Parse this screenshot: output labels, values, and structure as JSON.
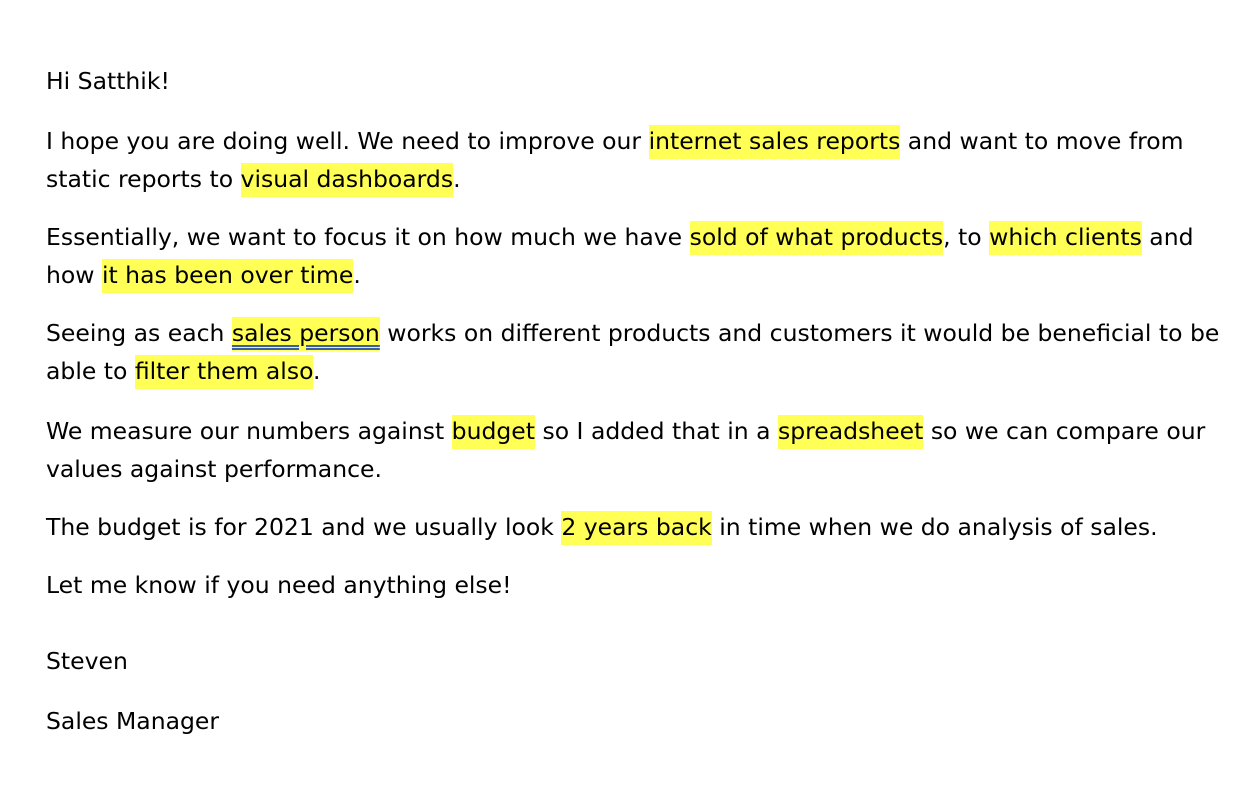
{
  "email": {
    "greeting": "Hi Satthik!",
    "p1": {
      "l1_a": "I hope you are doing well. We need to improve our ",
      "l1_hl": "internet sales reports",
      "l1_b": " and want to move from",
      "l2_a": "static reports to ",
      "l2_hl": "visual dashboards",
      "l2_b": "."
    },
    "p2": {
      "l1_a": "Essentially, we want to focus it on how much we have ",
      "l1_hl1": "sold of what products",
      "l1_b": ", to ",
      "l1_hl2": "which clients",
      "l1_c": " and",
      "l2_a": "how ",
      "l2_hl": "it has been over time",
      "l2_b": "."
    },
    "p3": {
      "l1_a": "Seeing as each ",
      "l1_hl": "sales person",
      "l1_b": " works on different products and customers it would be beneficial to be",
      "l2_a": "able to ",
      "l2_hl": "filter them also",
      "l2_b": "."
    },
    "p4": {
      "l1_a": "We measure our numbers against ",
      "l1_hl1": "budget",
      "l1_b": " so I added that in a ",
      "l1_hl2": "spreadsheet",
      "l1_c": " so we can compare our",
      "l2": "values against performance."
    },
    "p5": {
      "a": "The budget is for 2021 and we usually look ",
      "hl": "2 years back",
      "b": " in time when we do analysis of sales."
    },
    "p6": "Let me know if you need anything else!",
    "signature_name": "Steven",
    "signature_title": "Sales Manager"
  },
  "colors": {
    "highlight": "#ffff55",
    "underline": "#3a5fa8"
  }
}
